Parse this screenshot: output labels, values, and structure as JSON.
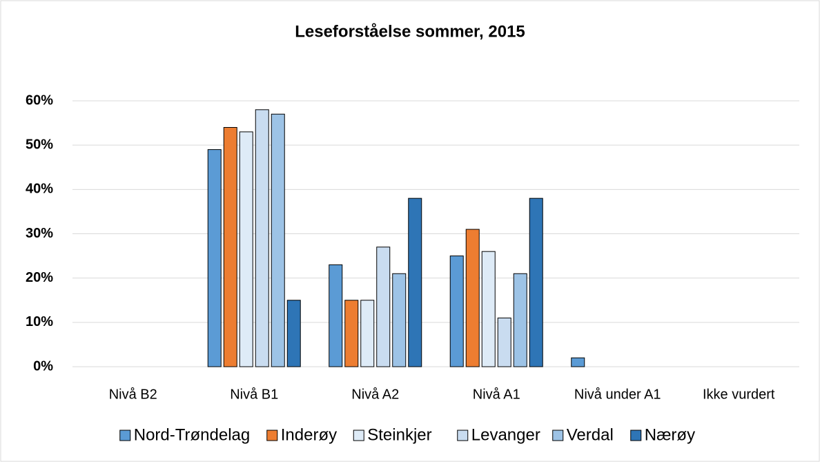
{
  "chart_data": {
    "type": "bar",
    "title": "Leseforståelse sommer, 2015",
    "categories": [
      "Nivå B2",
      "Nivå B1",
      "Nivå A2",
      "Nivå A1",
      "Nivå under A1",
      "Ikke vurdert"
    ],
    "series": [
      {
        "name": "Nord-Trøndelag",
        "color": "#5b9bd5",
        "values": [
          0,
          49,
          23,
          25,
          2,
          0
        ]
      },
      {
        "name": "Inderøy",
        "color": "#ed7d31",
        "values": [
          0,
          54,
          15,
          31,
          0,
          0
        ]
      },
      {
        "name": "Steinkjer",
        "color": "#deebf7",
        "values": [
          0,
          53,
          15,
          26,
          0,
          0
        ]
      },
      {
        "name": "Levanger",
        "color": "#c9dcf0",
        "values": [
          0,
          58,
          27,
          11,
          0,
          0
        ]
      },
      {
        "name": "Verdal",
        "color": "#9dc3e6",
        "values": [
          0,
          57,
          21,
          21,
          0,
          0
        ]
      },
      {
        "name": "Nærøy",
        "color": "#2e75b6",
        "values": [
          0,
          15,
          38,
          38,
          0,
          0
        ]
      }
    ],
    "ylim": [
      0,
      60
    ],
    "yticks": [
      {
        "value": 0,
        "label": "0%"
      },
      {
        "value": 10,
        "label": "10%"
      },
      {
        "value": 20,
        "label": "20%"
      },
      {
        "value": 30,
        "label": "30%"
      },
      {
        "value": 40,
        "label": "40%"
      },
      {
        "value": 50,
        "label": "50%"
      },
      {
        "value": 60,
        "label": "60%"
      }
    ],
    "grid": true,
    "legend": "bottom"
  }
}
